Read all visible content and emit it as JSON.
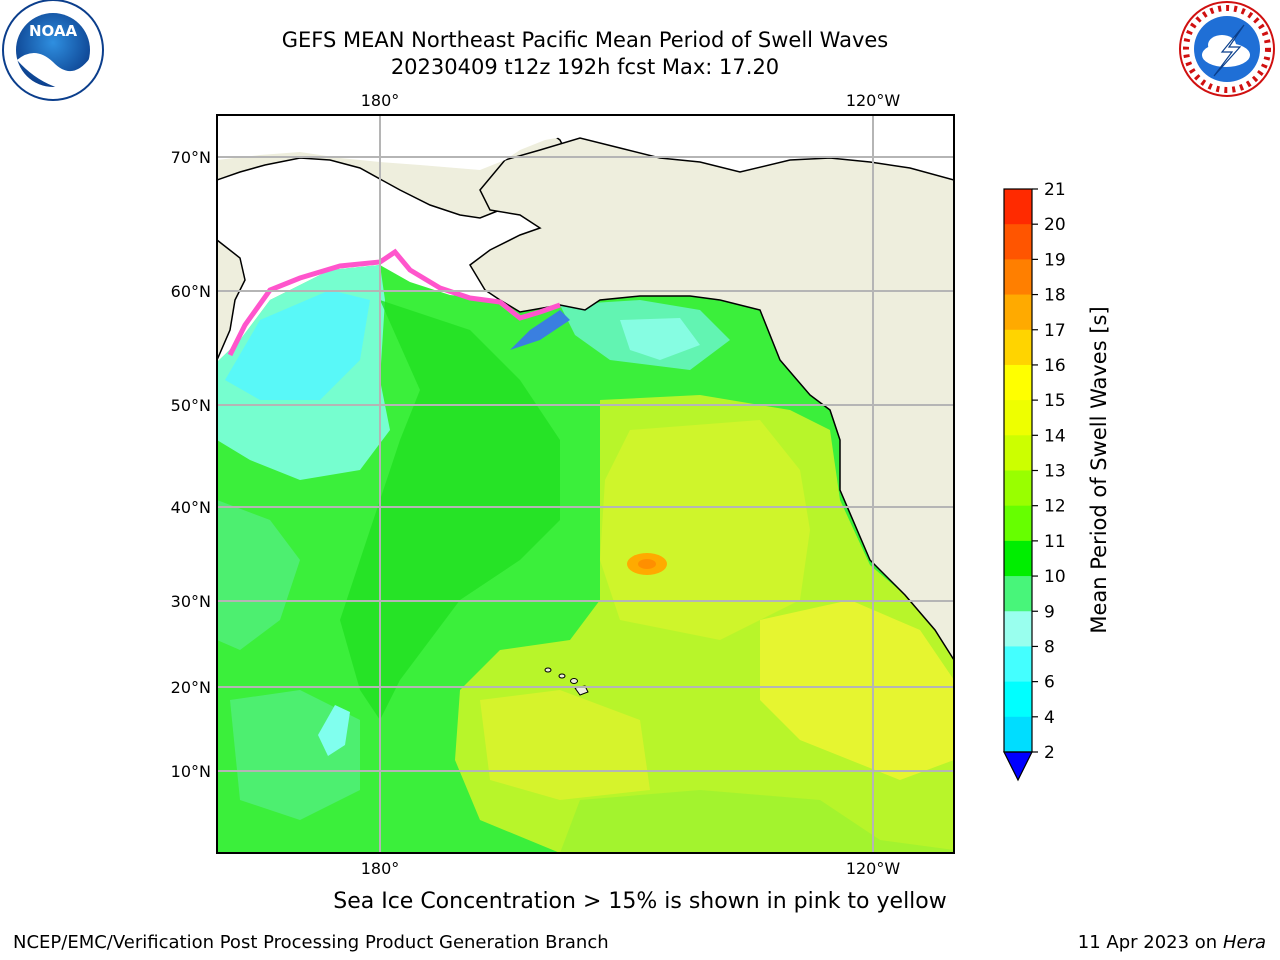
{
  "header": {
    "title_line1": "GEFS MEAN Northeast Pacific Mean Period of Swell Waves",
    "title_line2": "20230409 t12z 192h fcst   Max: 17.20"
  },
  "logos": {
    "left": {
      "name": "NOAA",
      "ring_text": "NATIONAL OCEANIC AND ATMOSPHERIC ADMINISTRATION · U.S. DEPARTMENT OF COMMERCE"
    },
    "right": {
      "ring_text": "NATIONAL WEATHER SERVICE"
    }
  },
  "map": {
    "lon_labels": [
      "180°",
      "120°W"
    ],
    "lat_labels": [
      "70°N",
      "60°N",
      "50°N",
      "40°N",
      "30°N",
      "20°N",
      "10°N"
    ],
    "colors": {
      "land": "#eeeedd",
      "ocean_green": "#3bf03b",
      "ocean_yellow": "#d8f22c",
      "gridline": "#b5b5b5"
    }
  },
  "colorbar": {
    "label": "Mean Period of Swell Waves [s]",
    "ticks": [
      "21",
      "20",
      "19",
      "18",
      "17",
      "16",
      "15",
      "14",
      "13",
      "12",
      "11",
      "10",
      "9",
      "8",
      "6",
      "4",
      "2"
    ],
    "colors": [
      "#ff0000",
      "#ff2a00",
      "#ff5500",
      "#ff7f00",
      "#ffaa00",
      "#ffd400",
      "#ffff00",
      "#eeff00",
      "#ccff00",
      "#99ff00",
      "#66ff00",
      "#00ee00",
      "#48f57a",
      "#99ffee",
      "#44ffff",
      "#00ffff",
      "#00ddff",
      "#0077ff",
      "#0000ff"
    ]
  },
  "note": "Sea Ice Concentration > 15% is shown in pink to yellow",
  "footer": {
    "left": "NCEP/EMC/Verification Post Processing Product Generation Branch",
    "date": "11 Apr 2023 on ",
    "host": "Hera"
  }
}
